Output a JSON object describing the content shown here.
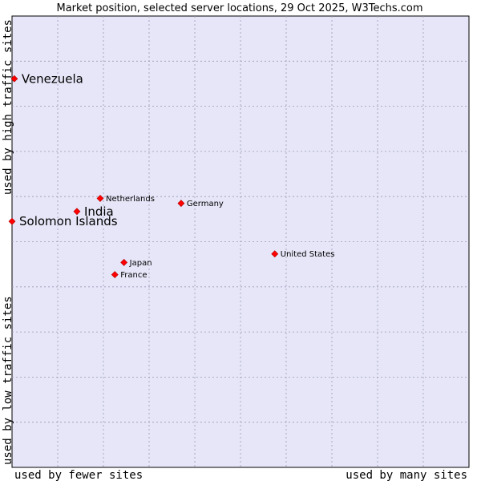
{
  "chart_data": {
    "type": "scatter",
    "title": "Market position, selected server locations, 29 Oct 2025, W3Techs.com",
    "xlabel_left": "used by fewer sites",
    "xlabel_right": "used by many sites",
    "ylabel_bottom": "used by low traffic sites",
    "ylabel_top": "used by high traffic sites",
    "xlim": [
      0,
      100
    ],
    "ylim": [
      0,
      100
    ],
    "grid": true,
    "marker_color": "#ff0000",
    "plot_background": "#e6e6f8",
    "points": [
      {
        "name": "Venezuela",
        "x": 0.5,
        "y": 86.1,
        "size": "large"
      },
      {
        "name": "Netherlands",
        "x": 19.3,
        "y": 59.6,
        "size": "small"
      },
      {
        "name": "India",
        "x": 14.2,
        "y": 56.7,
        "size": "large"
      },
      {
        "name": "Solomon Islands",
        "x": 0.0,
        "y": 54.5,
        "size": "large"
      },
      {
        "name": "Germany",
        "x": 37.0,
        "y": 58.5,
        "size": "small"
      },
      {
        "name": "United States",
        "x": 57.5,
        "y": 47.3,
        "size": "small"
      },
      {
        "name": "Japan",
        "x": 24.5,
        "y": 45.4,
        "size": "small"
      },
      {
        "name": "France",
        "x": 22.5,
        "y": 42.7,
        "size": "small"
      }
    ]
  }
}
